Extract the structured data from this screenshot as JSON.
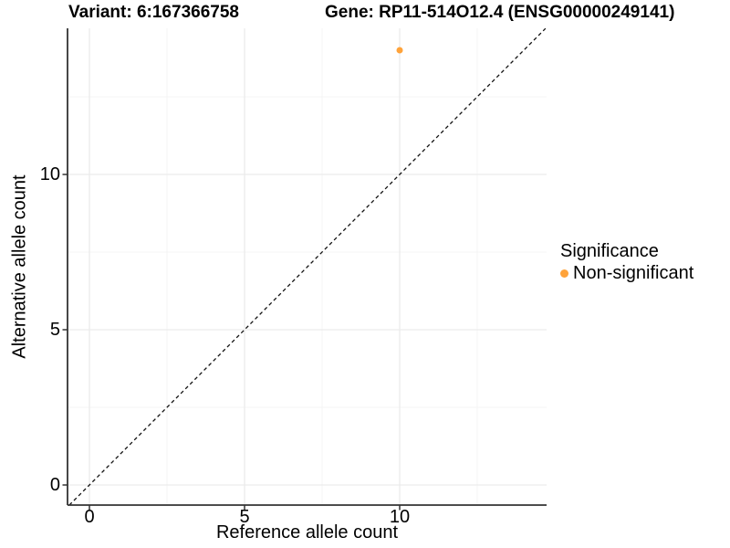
{
  "chart_data": {
    "type": "scatter",
    "titles": {
      "variant": "Variant: 6:167366758",
      "gene": "Gene: RP11-514O12.4 (ENSG00000249141)"
    },
    "xlabel": "Reference allele count",
    "ylabel": "Alternative allele count",
    "xlim": [
      -0.7,
      14.7
    ],
    "ylim": [
      -0.65,
      14.7
    ],
    "x_ticks": [
      0,
      5,
      10
    ],
    "y_ticks": [
      0,
      5,
      10
    ],
    "x_minor_ticks": [
      2.5,
      7.5,
      12.5
    ],
    "y_minor_ticks": [
      2.5,
      7.5,
      12.5
    ],
    "grid": "major and minor, on white panel",
    "identity_line": {
      "style": "dashed",
      "slope": 1,
      "intercept": 0,
      "color": "#111111"
    },
    "series": [
      {
        "name": "Non-significant",
        "color": "#FFA33A",
        "points": [
          {
            "x": 10,
            "y": 14
          }
        ]
      }
    ],
    "legend": {
      "title": "Significance",
      "position": "right",
      "entries": [
        {
          "label": "Non-significant",
          "color": "#FFA33A"
        }
      ]
    },
    "colors": {
      "axis_line": "#333333",
      "grid_major": "#ececec",
      "grid_minor": "#f4f4f4",
      "text": "#000000"
    }
  }
}
